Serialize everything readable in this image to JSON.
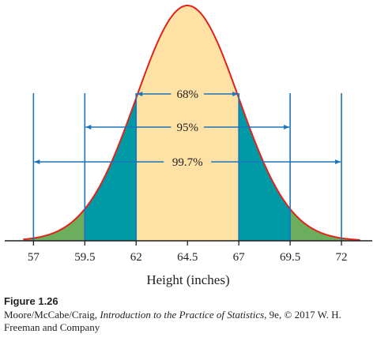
{
  "chart_data": {
    "type": "area",
    "title": "",
    "xlabel": "Height (inches)",
    "ylabel": "",
    "distribution": {
      "kind": "normal",
      "mean": 64.5,
      "sd": 2.5
    },
    "xlim": [
      55.6,
      73.5
    ],
    "x_ticks": [
      57,
      59.5,
      62,
      64.5,
      67,
      69.5,
      72
    ],
    "x_tick_labels": [
      "57",
      "59.5",
      "62",
      "64.5",
      "67",
      "69.5",
      "72"
    ],
    "regions": [
      {
        "label": "68%",
        "from": 62,
        "to": 67,
        "color": "#fde1a5"
      },
      {
        "label": "95%",
        "from": 59.5,
        "to": 69.5,
        "color": "#009aa6"
      },
      {
        "label": "99.7%",
        "from": 57,
        "to": 72,
        "color": "#6aae5e"
      }
    ],
    "grid": false,
    "colors": {
      "curve": "#e2231a",
      "guide_lines": "#1a75bc",
      "axis": "#231f20"
    }
  },
  "caption": {
    "figure_number": "Figure 1.26",
    "authors": "Moore/McCabe/Craig, ",
    "book_title": "Introduction to the Practice of Statistics",
    "details": ", 9e, © 2017 W. H. Freeman and Company"
  }
}
